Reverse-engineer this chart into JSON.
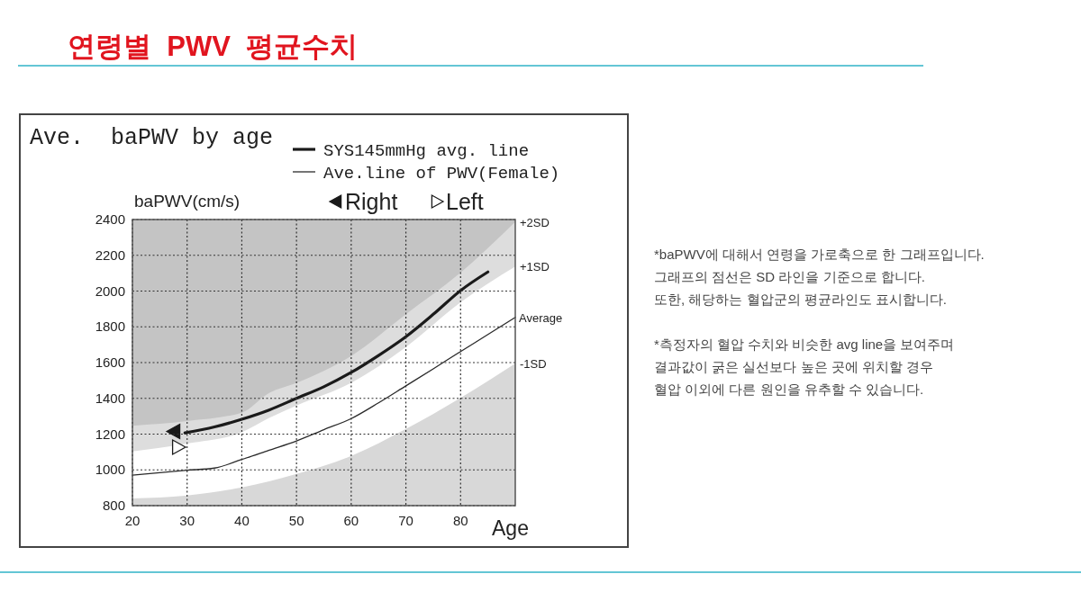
{
  "chart_data": {
    "type": "line",
    "title": "연령별  PWV  평균수치",
    "subtitle": "Ave.  baPWV by age",
    "xlabel": "Age",
    "ylabel": "baPWV(cm/s)",
    "xlim": [
      20,
      90
    ],
    "xticks": [
      20,
      30,
      40,
      50,
      60,
      70,
      80
    ],
    "ylim": [
      800,
      2400
    ],
    "yticks": [
      800,
      1000,
      1200,
      1400,
      1600,
      1800,
      2000,
      2200,
      2400
    ],
    "grid": true,
    "legend": "top",
    "series": [
      {
        "type": "area",
        "name": "+2SD",
        "color": "#dddddd",
        "x": [
          20,
          30,
          40,
          45,
          50,
          60,
          70,
          80,
          90
        ],
        "values": [
          1247,
          1273,
          1320,
          1430,
          1487,
          1637,
          1870,
          2103,
          2387
        ]
      },
      {
        "type": "area",
        "name": "+1SD",
        "color": "#ffffff",
        "x": [
          20,
          30,
          40,
          45,
          50,
          60,
          70,
          80,
          90
        ],
        "values": [
          1103,
          1147,
          1210,
          1290,
          1360,
          1487,
          1687,
          1937,
          2137
        ]
      },
      {
        "type": "area",
        "name": "-1SD",
        "color": "#d8d8d8",
        "x": [
          20,
          30,
          40,
          50,
          60,
          70,
          80,
          90
        ],
        "values": [
          840,
          857,
          902,
          977,
          1078,
          1229,
          1403,
          1595
        ]
      },
      {
        "name": "SYS145mmHg avg. line",
        "color": "#1a1a1a",
        "x": [
          29.6,
          35,
          40,
          45,
          50,
          55,
          60,
          65,
          70,
          75,
          80,
          85
        ],
        "values": [
          1207,
          1240,
          1283,
          1335,
          1400,
          1465,
          1545,
          1640,
          1745,
          1870,
          2003,
          2107
        ]
      },
      {
        "name": "Ave.line of PWV(Female)",
        "color": "#2a2a2a",
        "x": [
          20,
          30,
          35,
          40,
          45,
          50,
          55,
          60,
          65,
          70,
          75,
          80,
          85,
          90
        ],
        "values": [
          970,
          998,
          1010,
          1058,
          1110,
          1162,
          1225,
          1287,
          1375,
          1470,
          1565,
          1662,
          1757,
          1853
        ]
      },
      {
        "type": "scatter",
        "name": "Right",
        "color": "#1a1a1a",
        "marker": "triangle",
        "x": [
          27.6
        ],
        "values": [
          1215
        ]
      },
      {
        "type": "scatter",
        "name": "Left",
        "color": "#ffffff",
        "marker": "triangle",
        "x": [
          28.4
        ],
        "values": [
          1127
        ]
      }
    ],
    "annotations": [
      {
        "text": "Average",
        "x": 90,
        "y": 1853
      },
      "*baPWV에 대해서 연령을 가로축으로 한 그래프입니다.\n그래프의 점선은 SD 라인을 기준으로 합니다.\n또한, 해당하는 혈압군의 평균라인도 표시합니다.",
      "*측정자의 혈압 수치와 비슷한 avg line을 보여주며\n결과값이 굵은 실선보다 높은 곳에 위치할 경우\n혈압 이외에 다른 원인을 유추할 수 있습니다."
    ]
  }
}
